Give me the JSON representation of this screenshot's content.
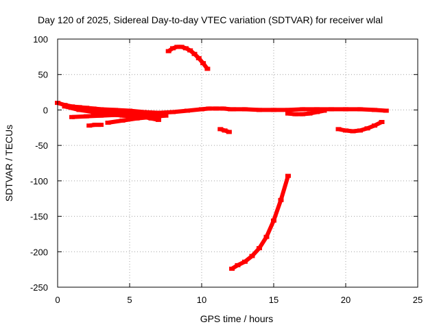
{
  "chart_data": {
    "type": "scatter",
    "title": "Day 120 of 2025, Sidereal Day-to-day VTEC variation (SDTVAR) for receiver wlal",
    "xlabel": "GPS time / hours",
    "ylabel": "SDTVAR / TECUs",
    "xlim": [
      0,
      25
    ],
    "ylim": [
      -250,
      100
    ],
    "xticks": [
      0,
      5,
      10,
      15,
      20,
      25
    ],
    "yticks": [
      100,
      50,
      0,
      -50,
      -100,
      -150,
      -200,
      -250
    ],
    "xtick_labels": [
      "0",
      "5",
      "10",
      "15",
      "20",
      "25"
    ],
    "ytick_labels": [
      "100",
      "50",
      "0",
      "-50",
      "-100",
      "-150",
      "-200",
      "-250"
    ],
    "grid": true,
    "legend": "none",
    "series_color": "#ff0000",
    "grid_color": "#a0a0a0",
    "series": [
      {
        "name": "arc-peak",
        "x": [
          7.7,
          8.0,
          8.3,
          8.6,
          8.9,
          9.2,
          9.5,
          9.8,
          10.1,
          10.4
        ],
        "y": [
          83,
          87,
          89,
          89,
          87,
          84,
          79,
          73,
          66,
          58
        ]
      },
      {
        "name": "arc-main-flat",
        "x": [
          0.0,
          0.5,
          1.0,
          1.5,
          2.0,
          2.5,
          3.0,
          4.0,
          5.0,
          6.0,
          7.0,
          8.0,
          9.0,
          10.0,
          10.5,
          11.0,
          11.5,
          12.0
        ],
        "y": [
          10,
          7,
          5,
          4,
          3,
          2,
          1,
          0,
          -1,
          -3,
          -4,
          -3,
          -1,
          1,
          2,
          2,
          2,
          1
        ]
      },
      {
        "name": "arc-low-a",
        "x": [
          1.0,
          2.0,
          3.0,
          4.0,
          5.0,
          6.0,
          7.0
        ],
        "y": [
          -10,
          -9,
          -8,
          -7,
          -6,
          -5,
          -4
        ]
      },
      {
        "name": "arc-low-b",
        "x": [
          0.5,
          1.5,
          2.5,
          3.5,
          4.5,
          5.5,
          6.5
        ],
        "y": [
          5,
          0,
          -3,
          -6,
          -8,
          -9,
          -7
        ]
      },
      {
        "name": "arc-low-c",
        "x": [
          3.5,
          4.5,
          5.5,
          6.5,
          7.5
        ],
        "y": [
          -18,
          -15,
          -12,
          -10,
          -8
        ]
      },
      {
        "name": "arc-low-d",
        "x": [
          1.0,
          2.0,
          3.0,
          4.0,
          4.5
        ],
        "y": [
          3,
          1,
          -1,
          -2,
          -3
        ]
      },
      {
        "name": "arc-low-e",
        "x": [
          5.0,
          5.5,
          6.0,
          6.5,
          7.0
        ],
        "y": [
          -5,
          -7,
          -10,
          -12,
          -14
        ]
      },
      {
        "name": "seg-1",
        "x": [
          2.2,
          2.6,
          3.0
        ],
        "y": [
          -22,
          -21,
          -21
        ]
      },
      {
        "name": "seg-2",
        "x": [
          11.3,
          11.6,
          11.9
        ],
        "y": [
          -27,
          -29,
          -31
        ]
      },
      {
        "name": "arc-right-flat",
        "x": [
          12.2,
          13.0,
          14.0,
          15.0,
          16.0,
          17.0,
          18.0,
          19.0,
          20.0,
          21.0,
          22.0,
          22.8
        ],
        "y": [
          1,
          1,
          0,
          0,
          0,
          1,
          1,
          1,
          1,
          1,
          0,
          -1
        ]
      },
      {
        "name": "arc-right-low",
        "x": [
          16.0,
          16.5,
          17.0,
          17.5,
          18.0,
          18.5
        ],
        "y": [
          -5,
          -6,
          -6,
          -5,
          -3,
          -1
        ]
      },
      {
        "name": "arc-right-dip",
        "x": [
          19.5,
          20.0,
          20.5,
          21.0,
          21.5,
          22.0,
          22.5
        ],
        "y": [
          -27,
          -29,
          -30,
          -29,
          -26,
          -22,
          -17
        ]
      },
      {
        "name": "arc-deep",
        "x": [
          12.1,
          12.5,
          13.0,
          13.5,
          14.0,
          14.5,
          15.0,
          15.5,
          16.0
        ],
        "y": [
          -224,
          -219,
          -214,
          -206,
          -195,
          -179,
          -156,
          -127,
          -93
        ]
      }
    ]
  }
}
